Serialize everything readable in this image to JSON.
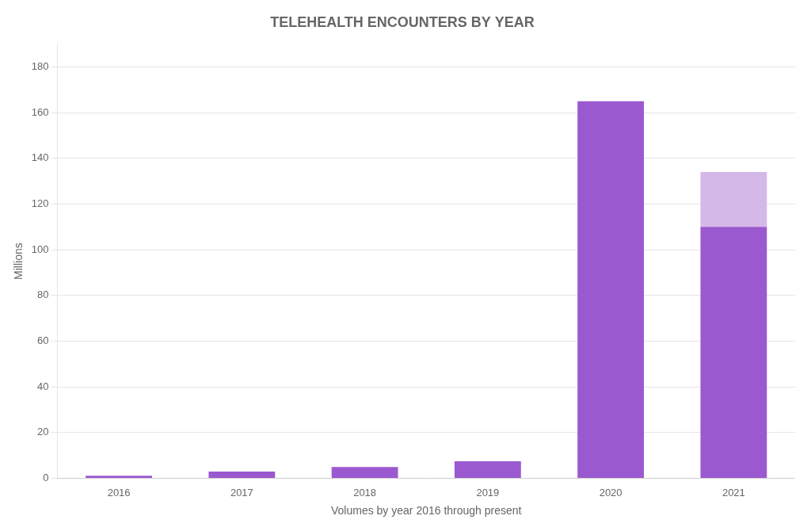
{
  "chart_data": {
    "type": "bar",
    "title": "TELEHEALTH ENCOUNTERS BY YEAR",
    "xlabel": "Volumes by year 2016 through present",
    "ylabel": "Millions",
    "categories": [
      "2016",
      "2017",
      "2018",
      "2019",
      "2020",
      "2021"
    ],
    "series": [
      {
        "color": "#9B59D0",
        "values": [
          1.2,
          3.0,
          5.0,
          7.5,
          165.0,
          110.0
        ]
      },
      {
        "color": "#D4B8E8",
        "values": [
          0,
          0,
          0,
          0,
          0,
          24.0
        ]
      }
    ],
    "stacked": true,
    "ylim": [
      0,
      190
    ],
    "yticks": [
      0,
      20,
      40,
      60,
      80,
      100,
      120,
      140,
      160,
      180
    ],
    "grid": "y"
  }
}
